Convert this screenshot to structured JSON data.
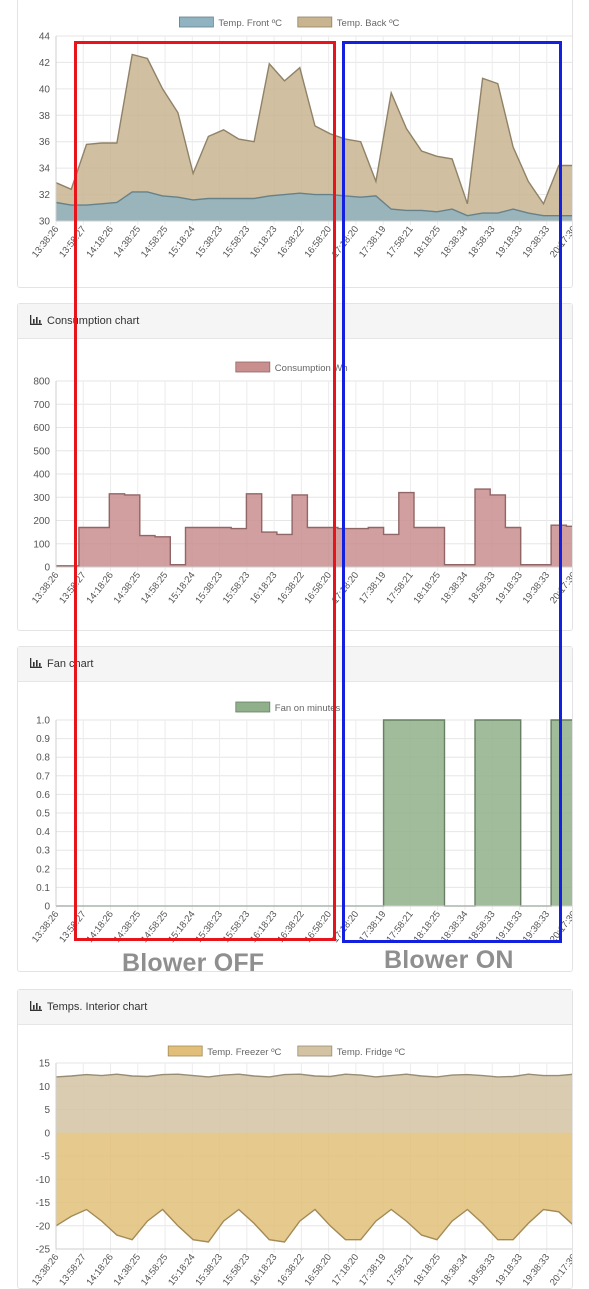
{
  "colors": {
    "front": "#8fb3c0",
    "back": "#c8b48f",
    "consumption": "#c98e8e",
    "fan": "#8fb08a",
    "freezer": "#e2bf78",
    "fridge": "#d4c3a3",
    "off_box": "#e8141c",
    "on_box": "#1420e0"
  },
  "overlay": {
    "off_label": "Blower OFF",
    "on_label": "Blower ON"
  },
  "charts": [
    {
      "header": "",
      "chart_data": {
        "type": "area",
        "legend": [
          "Temp. Front ºC",
          "Temp. Back ºC"
        ],
        "ylim": [
          30,
          44
        ],
        "yticks": [
          "30",
          "32",
          "34",
          "36",
          "38",
          "40",
          "42",
          "44"
        ],
        "xticks": [
          "13:38:26",
          "13:58:27",
          "14:18:26",
          "14:38:25",
          "14:58:25",
          "15:18:24",
          "15:38:23",
          "15:58:23",
          "16:18:23",
          "16:38:22",
          "16:58:20",
          "17:18:20",
          "17:38:19",
          "17:58:21",
          "18:18:25",
          "18:38:34",
          "18:58:33",
          "19:18:33",
          "19:38:33",
          "20:17:30"
        ],
        "series": [
          {
            "name": "Temp. Back ºC",
            "values": [
              32.9,
              32.4,
              35.8,
              35.9,
              35.9,
              42.6,
              42.3,
              40.0,
              38.2,
              33.6,
              36.4,
              36.9,
              36.2,
              36.0,
              41.9,
              40.6,
              41.6,
              37.2,
              36.6,
              36.2,
              36.0,
              33.0,
              39.7,
              37.0,
              35.3,
              34.9,
              34.7,
              31.3,
              40.8,
              40.4,
              35.6,
              33.0,
              31.3,
              34.2,
              34.2
            ]
          },
          {
            "name": "Temp. Front ºC",
            "values": [
              31.4,
              31.2,
              31.2,
              31.3,
              31.4,
              32.2,
              32.2,
              31.9,
              31.8,
              31.6,
              31.7,
              31.7,
              31.7,
              31.7,
              31.9,
              32.0,
              32.1,
              32.0,
              32.0,
              31.9,
              31.8,
              31.9,
              30.9,
              30.8,
              30.8,
              30.7,
              30.9,
              30.4,
              30.6,
              30.6,
              30.9,
              30.6,
              30.4,
              30.4,
              30.4
            ]
          }
        ]
      }
    },
    {
      "header": "Consumption chart",
      "chart_data": {
        "type": "area",
        "legend": [
          "Consumption Wh"
        ],
        "ylim": [
          0,
          800
        ],
        "yticks": [
          "0",
          "100",
          "200",
          "300",
          "400",
          "500",
          "600",
          "700",
          "800"
        ],
        "xticks": [
          "13:38:26",
          "13:58:27",
          "14:18:26",
          "14:38:25",
          "14:58:25",
          "15:18:24",
          "15:38:23",
          "15:58:23",
          "16:18:23",
          "16:38:22",
          "16:58:20",
          "17:18:20",
          "17:38:19",
          "17:58:21",
          "18:18:25",
          "18:38:34",
          "18:58:33",
          "19:18:33",
          "19:38:33",
          "20:17:30"
        ],
        "series": [
          {
            "name": "Consumption Wh",
            "values": [
              5,
              5,
              170,
              170,
              315,
              310,
              135,
              130,
              10,
              170,
              170,
              170,
              165,
              315,
              150,
              140,
              310,
              170,
              170,
              165,
              165,
              170,
              140,
              320,
              170,
              170,
              10,
              10,
              335,
              310,
              170,
              10,
              10,
              180,
              175
            ]
          }
        ]
      }
    },
    {
      "header": "Fan chart",
      "chart_data": {
        "type": "area",
        "legend": [
          "Fan on minutes"
        ],
        "ylim": [
          0,
          1
        ],
        "yticks": [
          "0",
          "0.1",
          "0.2",
          "0.3",
          "0.4",
          "0.5",
          "0.6",
          "0.7",
          "0.8",
          "0.9",
          "1.0"
        ],
        "xticks": [
          "13:38:26",
          "13:58:27",
          "14:18:26",
          "14:38:25",
          "14:58:25",
          "15:18:24",
          "15:38:23",
          "15:58:23",
          "16:18:23",
          "16:38:22",
          "16:58:20",
          "17:18:20",
          "17:38:19",
          "17:58:21",
          "18:18:25",
          "18:38:34",
          "18:58:33",
          "19:18:33",
          "19:38:33",
          "20:17:30"
        ],
        "series": [
          {
            "name": "Fan on minutes",
            "values": [
              0,
              0,
              0,
              0,
              0,
              0,
              0,
              0,
              0,
              0,
              0,
              0,
              0,
              0,
              0,
              0,
              0,
              0,
              0,
              0,
              0,
              0,
              1,
              1,
              1,
              1,
              0,
              0,
              1,
              1,
              1,
              0,
              0,
              1,
              1
            ]
          }
        ]
      }
    },
    {
      "header": "Temps. Interior chart",
      "chart_data": {
        "type": "area",
        "legend": [
          "Temp. Freezer ºC",
          "Temp. Fridge ºC"
        ],
        "ylim": [
          -25,
          15
        ],
        "yticks": [
          "-25",
          "-20",
          "-15",
          "-10",
          "-5",
          "0",
          "5",
          "10",
          "15"
        ],
        "xticks": [
          "13:38:26",
          "13:58:27",
          "14:18:26",
          "14:38:25",
          "14:58:25",
          "15:18:24",
          "15:38:23",
          "15:58:23",
          "16:18:23",
          "16:38:22",
          "16:58:20",
          "17:18:20",
          "17:38:19",
          "17:58:21",
          "18:18:25",
          "18:38:34",
          "18:58:33",
          "19:18:33",
          "19:38:33",
          "20:17:30"
        ],
        "series": [
          {
            "name": "Temp. Fridge ºC",
            "values": [
              12.0,
              12.2,
              12.5,
              12.3,
              12.6,
              12.2,
              12.1,
              12.5,
              12.6,
              12.3,
              12.0,
              12.4,
              12.6,
              12.2,
              12.0,
              12.5,
              12.6,
              12.2,
              12.1,
              12.6,
              12.4,
              12.0,
              12.3,
              12.6,
              12.2,
              12.0,
              12.4,
              12.5,
              12.3,
              12.0,
              12.1,
              12.6,
              12.3,
              12.3,
              12.6
            ]
          },
          {
            "name": "Temp. Freezer ºC",
            "values": [
              -20,
              -18,
              -16.5,
              -19,
              -22,
              -23,
              -19,
              -16.5,
              -20,
              -23,
              -23.5,
              -19,
              -16.5,
              -19.5,
              -23,
              -23.5,
              -19,
              -16.5,
              -20,
              -23,
              -23,
              -19,
              -16.5,
              -19,
              -22,
              -23,
              -19,
              -16.5,
              -19.5,
              -23,
              -23,
              -19.5,
              -16.5,
              -17,
              -20
            ]
          }
        ]
      }
    }
  ]
}
